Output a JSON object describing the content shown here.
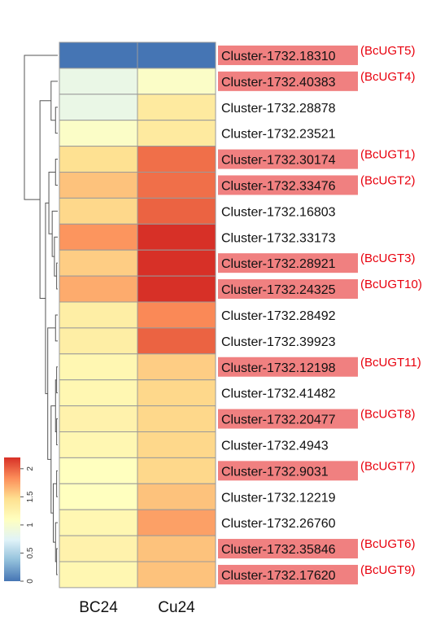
{
  "chart_data": {
    "type": "heatmap",
    "columns": [
      "BC24",
      "Cu24"
    ],
    "rows": [
      {
        "label": "Cluster-1732.18310",
        "tag": "(BcUGT5)",
        "highlight": true,
        "values": [
          0.0,
          0.0
        ]
      },
      {
        "label": "Cluster-1732.40383",
        "tag": "(BcUGT4)",
        "highlight": true,
        "values": [
          0.85,
          1.05
        ]
      },
      {
        "label": "Cluster-1732.28878",
        "tag": "",
        "highlight": false,
        "values": [
          0.85,
          1.35
        ]
      },
      {
        "label": "Cluster-1732.23521",
        "tag": "",
        "highlight": false,
        "values": [
          1.05,
          1.35
        ]
      },
      {
        "label": "Cluster-1732.30174",
        "tag": "(BcUGT1)",
        "highlight": true,
        "values": [
          1.45,
          1.95
        ]
      },
      {
        "label": "Cluster-1732.33476",
        "tag": "(BcUGT2)",
        "highlight": true,
        "values": [
          1.6,
          1.95
        ]
      },
      {
        "label": "Cluster-1732.16803",
        "tag": "",
        "highlight": false,
        "values": [
          1.5,
          2.0
        ]
      },
      {
        "label": "Cluster-1732.33173",
        "tag": "",
        "highlight": false,
        "values": [
          1.8,
          2.2
        ]
      },
      {
        "label": "Cluster-1732.28921",
        "tag": "(BcUGT3)",
        "highlight": true,
        "values": [
          1.55,
          2.2
        ]
      },
      {
        "label": "Cluster-1732.24325",
        "tag": "(BcUGT10)",
        "highlight": true,
        "values": [
          1.7,
          2.2
        ]
      },
      {
        "label": "Cluster-1732.28492",
        "tag": "",
        "highlight": false,
        "values": [
          1.3,
          1.85
        ]
      },
      {
        "label": "Cluster-1732.39923",
        "tag": "",
        "highlight": false,
        "values": [
          1.3,
          2.0
        ]
      },
      {
        "label": "Cluster-1732.12198",
        "tag": "(BcUGT11)",
        "highlight": true,
        "values": [
          1.2,
          1.55
        ]
      },
      {
        "label": "Cluster-1732.41482",
        "tag": "",
        "highlight": false,
        "values": [
          1.2,
          1.5
        ]
      },
      {
        "label": "Cluster-1732.20477",
        "tag": "(BcUGT8)",
        "highlight": true,
        "values": [
          1.25,
          1.5
        ]
      },
      {
        "label": "Cluster-1732.4943",
        "tag": "",
        "highlight": false,
        "values": [
          1.2,
          1.5
        ]
      },
      {
        "label": "Cluster-1732.9031",
        "tag": "(BcUGT7)",
        "highlight": true,
        "values": [
          1.1,
          1.5
        ]
      },
      {
        "label": "Cluster-1732.12219",
        "tag": "",
        "highlight": false,
        "values": [
          1.1,
          1.6
        ]
      },
      {
        "label": "Cluster-1732.26760",
        "tag": "",
        "highlight": false,
        "values": [
          1.2,
          1.75
        ]
      },
      {
        "label": "Cluster-1732.35846",
        "tag": "(BcUGT6)",
        "highlight": true,
        "values": [
          1.25,
          1.6
        ]
      },
      {
        "label": "Cluster-1732.17620",
        "tag": "(BcUGT9)",
        "highlight": true,
        "values": [
          1.2,
          1.6
        ]
      }
    ],
    "color_scale": {
      "min": 0,
      "max": 2.2,
      "ticks": [
        "0",
        "0.5",
        "1",
        "1.5",
        "2"
      ],
      "colors": [
        "#4575b4",
        "#91bfdb",
        "#e0f3f8",
        "#ffffbf",
        "#fee090",
        "#fc8d59",
        "#d73027"
      ]
    },
    "highlight_color": "#f08080",
    "tag_color": "#e8000d"
  }
}
